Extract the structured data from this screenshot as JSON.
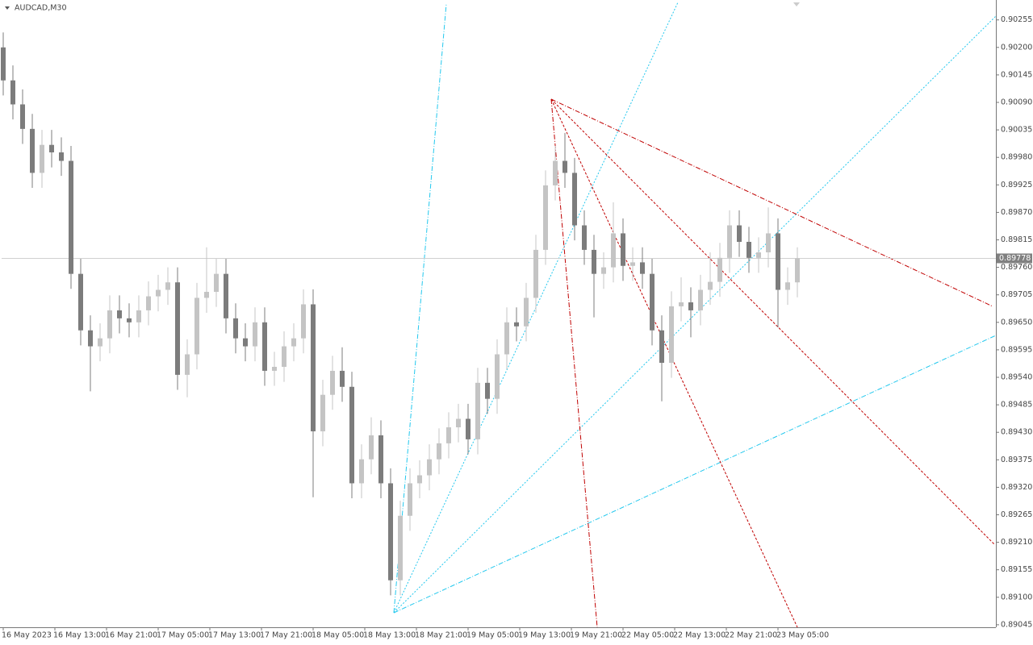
{
  "chart_data": {
    "type": "candlestick",
    "title": "AUDCAD,M30",
    "x": [
      0,
      3,
      6,
      9,
      12,
      15,
      18,
      21,
      24,
      27,
      30,
      33,
      36,
      39,
      42,
      45,
      48,
      51,
      54,
      57,
      60,
      63,
      66,
      69,
      72,
      75,
      78,
      81,
      84,
      87,
      90,
      93,
      96,
      99,
      102,
      105,
      108,
      111,
      114,
      117,
      120,
      123,
      126,
      129,
      132,
      135,
      138,
      141,
      144,
      147,
      150,
      153,
      156,
      159,
      162,
      165,
      168,
      171,
      174,
      177,
      180,
      183,
      186,
      189,
      192,
      195,
      198,
      201,
      204,
      207,
      210,
      213,
      216,
      219,
      222,
      225,
      228,
      231,
      234,
      237,
      240,
      243,
      246
    ],
    "open": [
      0.902,
      0.90134,
      0.90086,
      0.90037,
      0.89949,
      0.90005,
      0.8999,
      0.89973,
      0.89747,
      0.89634,
      0.89602,
      0.89618,
      0.89674,
      0.89658,
      0.8965,
      0.89674,
      0.89702,
      0.89715,
      0.8973,
      0.89545,
      0.89586,
      0.89699,
      0.89711,
      0.89747,
      0.89658,
      0.89618,
      0.89602,
      0.8965,
      0.89553,
      0.89561,
      0.89602,
      0.89618,
      0.89686,
      0.89432,
      0.89505,
      0.89553,
      0.89521,
      0.89328,
      0.89376,
      0.89424,
      0.89328,
      0.89134,
      0.89263,
      0.89328,
      0.89344,
      0.89376,
      0.89408,
      0.8944,
      0.89457,
      0.89416,
      0.89529,
      0.89497,
      0.89586,
      0.8965,
      0.89642,
      0.89699,
      0.89795,
      0.89924,
      0.89973,
      0.89949,
      0.89844,
      0.89795,
      0.89747,
      0.8976,
      0.89828,
      0.89763,
      0.8977,
      0.89747,
      0.89634,
      0.89569,
      0.89682,
      0.8969,
      0.89674,
      0.89715,
      0.89731,
      0.89779,
      0.89844,
      0.89811,
      0.89779,
      0.8979,
      0.89828,
      0.89715,
      0.8973
    ],
    "high": [
      0.9023,
      0.90164,
      0.90116,
      0.90067,
      0.90035,
      0.90035,
      0.9002,
      0.90003,
      0.89777,
      0.89664,
      0.89648,
      0.89704,
      0.89704,
      0.89688,
      0.89704,
      0.89732,
      0.89745,
      0.8976,
      0.8976,
      0.89616,
      0.89729,
      0.898,
      0.89777,
      0.89777,
      0.89688,
      0.89648,
      0.8968,
      0.8968,
      0.89591,
      0.89632,
      0.89648,
      0.89716,
      0.89716,
      0.89535,
      0.89583,
      0.896,
      0.89551,
      0.89406,
      0.8946,
      0.89454,
      0.89358,
      0.89293,
      0.89358,
      0.89374,
      0.89406,
      0.89438,
      0.8947,
      0.89487,
      0.89487,
      0.89559,
      0.89559,
      0.89616,
      0.8968,
      0.8968,
      0.89729,
      0.89825,
      0.89954,
      0.90003,
      0.90029,
      0.89979,
      0.89874,
      0.89825,
      0.8979,
      0.8989,
      0.89858,
      0.898,
      0.898,
      0.89777,
      0.89664,
      0.89712,
      0.8974,
      0.8972,
      0.89745,
      0.8979,
      0.89809,
      0.89874,
      0.89874,
      0.89841,
      0.8982,
      0.8988,
      0.89858,
      0.8976,
      0.898
    ],
    "low": [
      0.90104,
      0.90056,
      0.90007,
      0.89919,
      0.89919,
      0.8996,
      0.89943,
      0.89717,
      0.89604,
      0.89512,
      0.89572,
      0.89588,
      0.89628,
      0.8962,
      0.8962,
      0.89644,
      0.89672,
      0.89685,
      0.89515,
      0.895,
      0.89556,
      0.89669,
      0.89681,
      0.89628,
      0.89588,
      0.89572,
      0.89572,
      0.89523,
      0.89523,
      0.89531,
      0.89572,
      0.89588,
      0.893,
      0.89402,
      0.89475,
      0.89491,
      0.89298,
      0.89298,
      0.89346,
      0.89298,
      0.89104,
      0.89104,
      0.89233,
      0.89298,
      0.89314,
      0.89346,
      0.89378,
      0.8941,
      0.89386,
      0.89386,
      0.89467,
      0.89467,
      0.89556,
      0.89612,
      0.89612,
      0.89669,
      0.89765,
      0.89894,
      0.89919,
      0.89814,
      0.89765,
      0.8966,
      0.89717,
      0.8973,
      0.89733,
      0.89733,
      0.89717,
      0.89604,
      0.89492,
      0.89539,
      0.89652,
      0.8962,
      0.89644,
      0.89685,
      0.89701,
      0.89749,
      0.89781,
      0.89749,
      0.89749,
      0.8976,
      0.8964,
      0.89685,
      0.897
    ],
    "close": [
      0.90134,
      0.90086,
      0.90037,
      0.89949,
      0.90005,
      0.8999,
      0.89973,
      0.89747,
      0.89634,
      0.89602,
      0.89618,
      0.89674,
      0.89658,
      0.8965,
      0.89674,
      0.89702,
      0.89715,
      0.8973,
      0.89545,
      0.89586,
      0.89699,
      0.89711,
      0.89747,
      0.89658,
      0.89618,
      0.89602,
      0.8965,
      0.89553,
      0.89561,
      0.89602,
      0.89618,
      0.89686,
      0.89432,
      0.89505,
      0.89553,
      0.89521,
      0.89328,
      0.89376,
      0.89424,
      0.89328,
      0.89134,
      0.89263,
      0.89328,
      0.89344,
      0.89376,
      0.89408,
      0.8944,
      0.89457,
      0.89416,
      0.89529,
      0.89497,
      0.89586,
      0.8965,
      0.89642,
      0.89699,
      0.89795,
      0.89924,
      0.89973,
      0.89949,
      0.89844,
      0.89795,
      0.89747,
      0.8976,
      0.89828,
      0.89763,
      0.8977,
      0.89747,
      0.89634,
      0.89569,
      0.89682,
      0.8969,
      0.89674,
      0.89715,
      0.89731,
      0.89779,
      0.89844,
      0.89811,
      0.89779,
      0.8979,
      0.89828,
      0.89715,
      0.8973,
      0.89778
    ],
    "up_color": "#c4c4c4",
    "down_color": "#7c7c7c",
    "last_price": 0.89778,
    "xlim": [
      -0.5,
      307.5
    ],
    "xticks": [
      {
        "value": 0,
        "label": "16 May 2023"
      },
      {
        "value": 16,
        "label": "16 May 13:00"
      },
      {
        "value": 32,
        "label": "16 May 21:00"
      },
      {
        "value": 48,
        "label": "17 May 05:00"
      },
      {
        "value": 64,
        "label": "17 May 13:00"
      },
      {
        "value": 80,
        "label": "17 May 21:00"
      },
      {
        "value": 96,
        "label": "18 May 05:00"
      },
      {
        "value": 112,
        "label": "18 May 13:00"
      },
      {
        "value": 128,
        "label": "18 May 21:00"
      },
      {
        "value": 144,
        "label": "19 May 05:00"
      },
      {
        "value": 160,
        "label": "19 May 13:00"
      },
      {
        "value": 176,
        "label": "19 May 21:00"
      },
      {
        "value": 192,
        "label": "22 May 05:00"
      },
      {
        "value": 208,
        "label": "22 May 13:00"
      },
      {
        "value": 224,
        "label": "22 May 21:00"
      },
      {
        "value": 240,
        "label": "23 May 05:00"
      }
    ],
    "ylim": [
      0.8904,
      0.9029
    ],
    "yticks": [
      0.90255,
      {
        "value": 0.902,
        "label": "0.90200"
      },
      0.90145,
      {
        "value": 0.9009,
        "label": "0.90090"
      },
      0.90035,
      {
        "value": 0.8998,
        "label": "0.89980"
      },
      0.89925,
      {
        "value": 0.8987,
        "label": "0.89870"
      },
      0.89815,
      {
        "value": 0.8976,
        "label": "0.89760"
      },
      0.89705,
      {
        "value": 0.8965,
        "label": "0.89650"
      },
      0.89595,
      {
        "value": 0.8954,
        "label": "0.89540"
      },
      0.89485,
      {
        "value": 0.8943,
        "label": "0.89430"
      },
      0.89375,
      {
        "value": 0.8932,
        "label": "0.89320"
      },
      0.89265,
      {
        "value": 0.8921,
        "label": "0.89210"
      },
      0.89155,
      {
        "value": 0.891,
        "label": "0.89100"
      },
      0.89045
    ]
  }
}
